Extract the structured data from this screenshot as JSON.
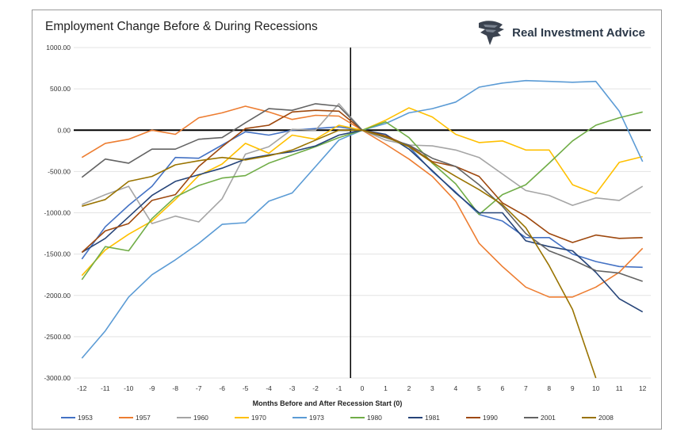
{
  "brand": {
    "name": "Real Investment Advice",
    "logo_icon": "eagle-head-icon"
  },
  "chart_data": {
    "type": "line",
    "title": "Employment Change Before & During Recessions",
    "xlabel": "Months Before and After Recession Start (0)",
    "ylabel": "",
    "ylim": [
      -3000,
      1000
    ],
    "xlim": [
      -12.35,
      12.35
    ],
    "yticks": [
      1000,
      500,
      0,
      -500,
      -1000,
      -1500,
      -2000,
      -2500,
      -3000
    ],
    "ytick_labels": [
      "1000.00",
      "500.00",
      "0.00",
      "-500.00",
      "-1000.00",
      "-1500.00",
      "-2000.00",
      "-2500.00",
      "-3000.00"
    ],
    "x": [
      -12,
      -11,
      -10,
      -9,
      -8,
      -7,
      -6,
      -5,
      -4,
      -3,
      -2,
      -1,
      0,
      1,
      2,
      3,
      4,
      5,
      6,
      7,
      8,
      9,
      10,
      11,
      12
    ],
    "xtick_labels": [
      "-12",
      "-11",
      "-10",
      "-9",
      "-8",
      "-7",
      "-6",
      "-5",
      "-4",
      "-3",
      "-2",
      "-1",
      "0",
      "1",
      "2",
      "3",
      "4",
      "5",
      "6",
      "7",
      "8",
      "9",
      "10",
      "11",
      "12"
    ],
    "grid": "horizontal",
    "legend_position": "bottom",
    "series": [
      {
        "name": "1953",
        "color": "#4472c4",
        "values": [
          -1560,
          -1170,
          -910,
          -680,
          -330,
          -340,
          -180,
          -20,
          -60,
          0,
          20,
          40,
          0,
          -80,
          -200,
          -500,
          -750,
          -1020,
          -1100,
          -1300,
          -1300,
          -1500,
          -1590,
          -1650,
          -1660
        ]
      },
      {
        "name": "1957",
        "color": "#ed7d31",
        "values": [
          -330,
          -160,
          -110,
          0,
          -50,
          150,
          210,
          290,
          220,
          130,
          180,
          170,
          0,
          -170,
          -350,
          -560,
          -860,
          -1370,
          -1650,
          -1900,
          -2020,
          -2020,
          -1900,
          -1720,
          -1430
        ]
      },
      {
        "name": "1960",
        "color": "#a5a5a5",
        "values": [
          -900,
          -780,
          -680,
          -1130,
          -1040,
          -1110,
          -830,
          -290,
          -200,
          10,
          0,
          320,
          0,
          -120,
          -180,
          -190,
          -240,
          -330,
          -530,
          -730,
          -790,
          -910,
          -820,
          -850,
          -680
        ]
      },
      {
        "name": "1970",
        "color": "#ffc000",
        "values": [
          -1760,
          -1450,
          -1260,
          -1100,
          -840,
          -550,
          -410,
          -160,
          -280,
          -60,
          -110,
          60,
          0,
          120,
          270,
          160,
          -50,
          -150,
          -130,
          -240,
          -240,
          -660,
          -770,
          -390,
          -320
        ]
      },
      {
        "name": "1973",
        "color": "#5b9bd5",
        "values": [
          -2760,
          -2430,
          -2020,
          -1750,
          -1570,
          -1370,
          -1140,
          -1120,
          -860,
          -760,
          -440,
          -120,
          0,
          80,
          210,
          260,
          340,
          520,
          570,
          600,
          590,
          580,
          590,
          230,
          -380
        ]
      },
      {
        "name": "1980",
        "color": "#70ad47",
        "values": [
          -1810,
          -1410,
          -1460,
          -1070,
          -810,
          -670,
          -580,
          -550,
          -400,
          -300,
          -200,
          -90,
          0,
          100,
          -90,
          -400,
          -650,
          -1020,
          -780,
          -660,
          -400,
          -130,
          60,
          150,
          220
        ]
      },
      {
        "name": "1981",
        "color": "#264478",
        "values": [
          -1480,
          -1310,
          -1050,
          -790,
          -620,
          -540,
          -460,
          -350,
          -300,
          -260,
          -190,
          -60,
          0,
          -50,
          -230,
          -490,
          -760,
          -1000,
          -1000,
          -1340,
          -1410,
          -1460,
          -1720,
          -2040,
          -2200
        ]
      },
      {
        "name": "1990",
        "color": "#9e480e",
        "values": [
          -1480,
          -1220,
          -1130,
          -850,
          -780,
          -440,
          -200,
          20,
          60,
          220,
          240,
          230,
          0,
          -70,
          -190,
          -380,
          -440,
          -560,
          -880,
          -1040,
          -1250,
          -1360,
          -1270,
          -1310,
          -1300
        ]
      },
      {
        "name": "2001",
        "color": "#636363",
        "values": [
          -570,
          -350,
          -400,
          -230,
          -230,
          -110,
          -90,
          90,
          260,
          240,
          320,
          290,
          0,
          -90,
          -180,
          -340,
          -440,
          -660,
          -920,
          -1250,
          -1460,
          -1570,
          -1700,
          -1730,
          -1830
        ]
      },
      {
        "name": "2008",
        "color": "#997300",
        "values": [
          -920,
          -840,
          -620,
          -560,
          -420,
          -370,
          -330,
          -360,
          -310,
          -240,
          -120,
          0,
          0,
          -80,
          -200,
          -390,
          -560,
          -720,
          -900,
          -1180,
          -1640,
          -2170,
          -3000,
          null,
          null
        ]
      }
    ]
  }
}
